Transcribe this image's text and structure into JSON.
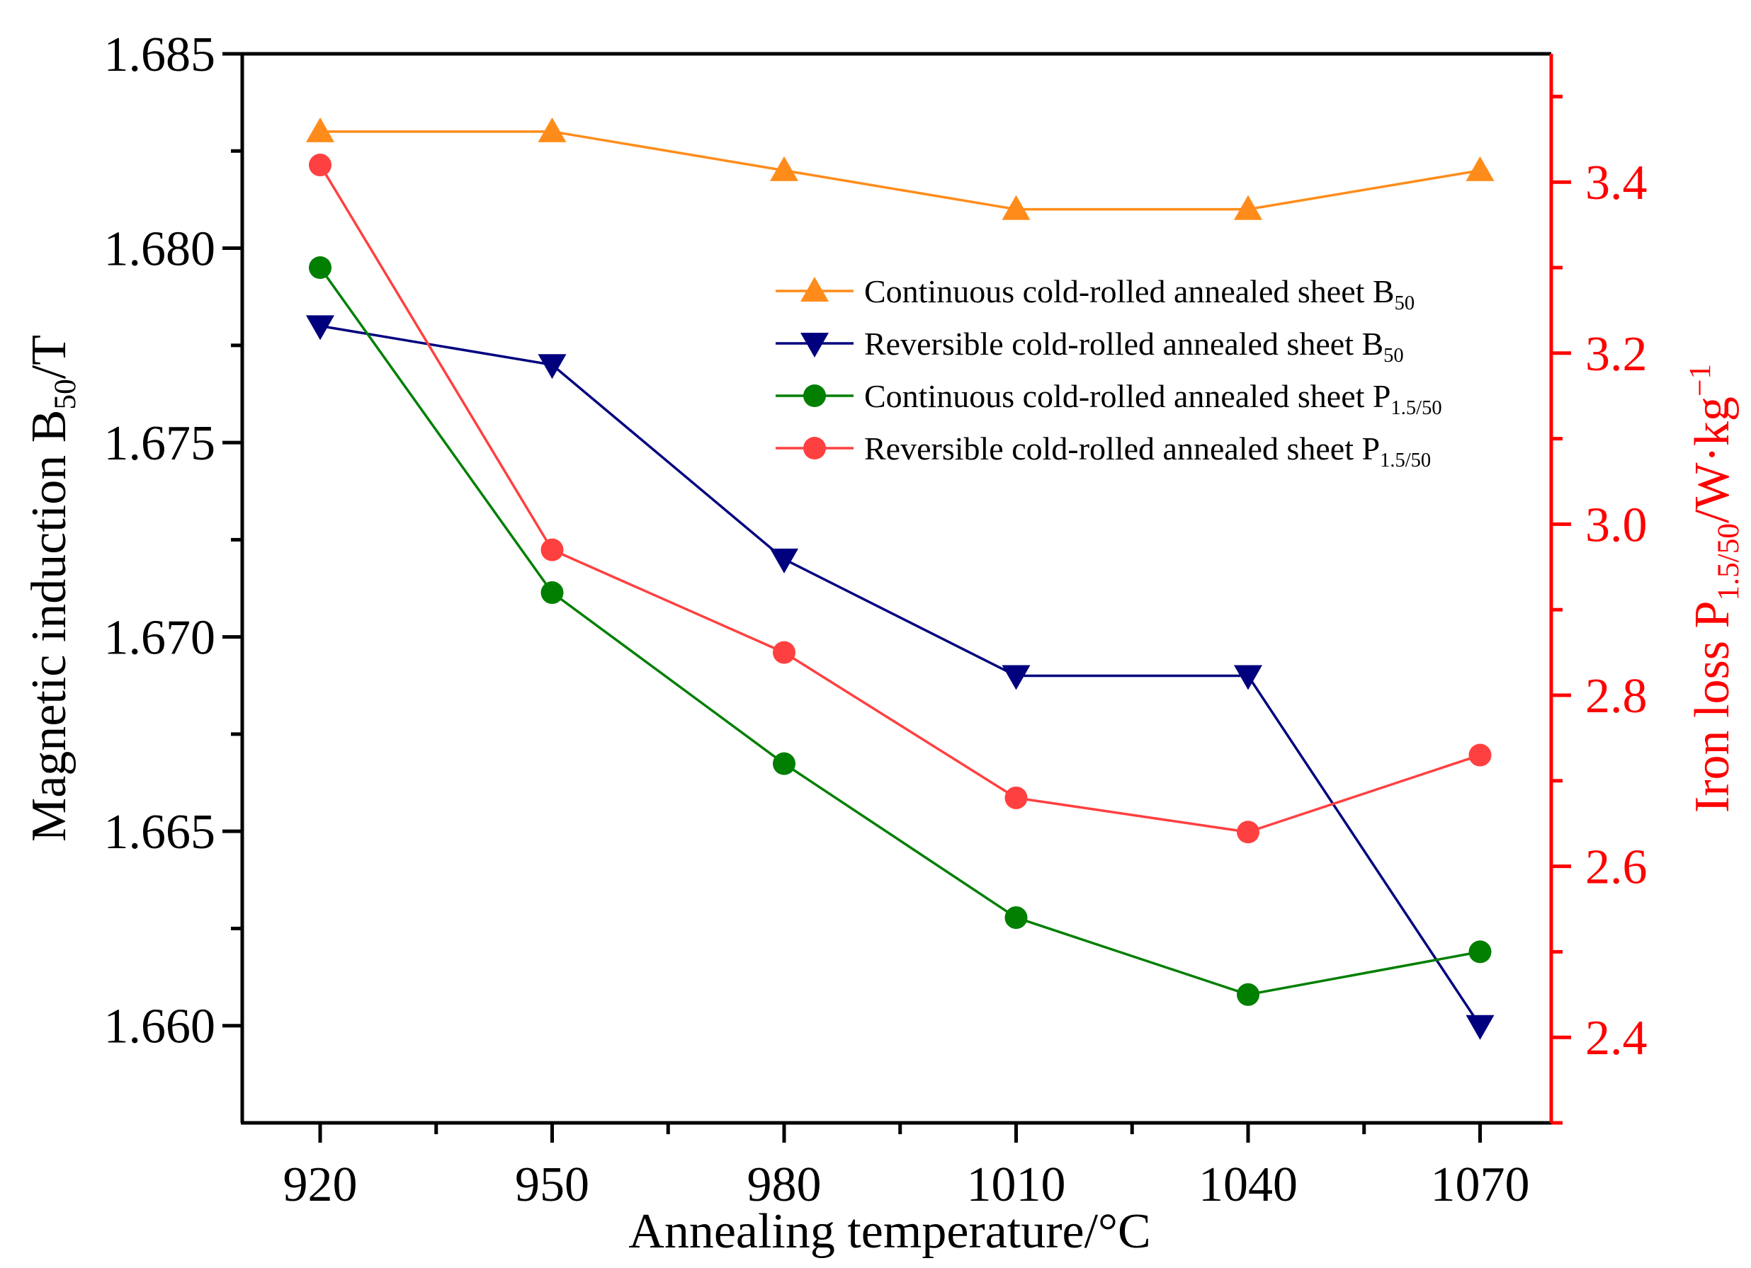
{
  "chart_data": {
    "type": "line",
    "title": "",
    "xlabel": "Annealing temperature/°C",
    "ylabel_left": {
      "main": "Magnetic induction B",
      "sub": "50",
      "tail": "/T"
    },
    "ylabel_right": {
      "main": "Iron loss P",
      "sub": "1.5/50",
      "tail": "/W·kg",
      "sup": "−1"
    },
    "categories": [
      920,
      950,
      980,
      1010,
      1040,
      1070
    ],
    "x_tick_labels": [
      "920",
      "950",
      "980",
      "1010",
      "1040",
      "1070"
    ],
    "ylim_left": [
      1.6575,
      1.685
    ],
    "yticks_left": [
      1.66,
      1.665,
      1.67,
      1.675,
      1.68,
      1.685
    ],
    "ytick_labels_left": [
      "1.660",
      "1.665",
      "1.670",
      "1.675",
      "1.680",
      "1.685"
    ],
    "ylim_right": [
      2.3,
      3.55
    ],
    "yticks_right": [
      2.4,
      2.6,
      2.8,
      3.0,
      3.2,
      3.4
    ],
    "ytick_labels_right": [
      "2.4",
      "2.6",
      "2.8",
      "3.0",
      "3.2",
      "3.4"
    ],
    "legend_position": "upper-right",
    "series": [
      {
        "name": "Continuous cold-rolled annealed sheet B",
        "name_sub": "50",
        "axis": "left",
        "color": "#ff8c1a",
        "marker": "triangle-up",
        "values": [
          1.683,
          1.683,
          1.682,
          1.681,
          1.681,
          1.682
        ]
      },
      {
        "name": "Reversible cold-rolled annealed sheet B",
        "name_sub": "50",
        "axis": "left",
        "color": "#00007f",
        "marker": "triangle-down",
        "values": [
          1.678,
          1.677,
          1.672,
          1.669,
          1.669,
          1.66
        ]
      },
      {
        "name": "Continuous cold-rolled annealed sheet P",
        "name_sub": "1.5/50",
        "axis": "right",
        "color": "#007f00",
        "marker": "circle",
        "values": [
          3.3,
          2.92,
          2.72,
          2.54,
          2.45,
          2.5
        ]
      },
      {
        "name": "Reversible cold-rolled annealed sheet P",
        "name_sub": "1.5/50",
        "axis": "right",
        "color": "#ff4040",
        "marker": "circle",
        "values": [
          3.42,
          2.97,
          2.85,
          2.68,
          2.64,
          2.73
        ]
      }
    ],
    "axis_colors": {
      "left": "#000000",
      "right": "#ff0000",
      "bottom": "#000000"
    }
  }
}
